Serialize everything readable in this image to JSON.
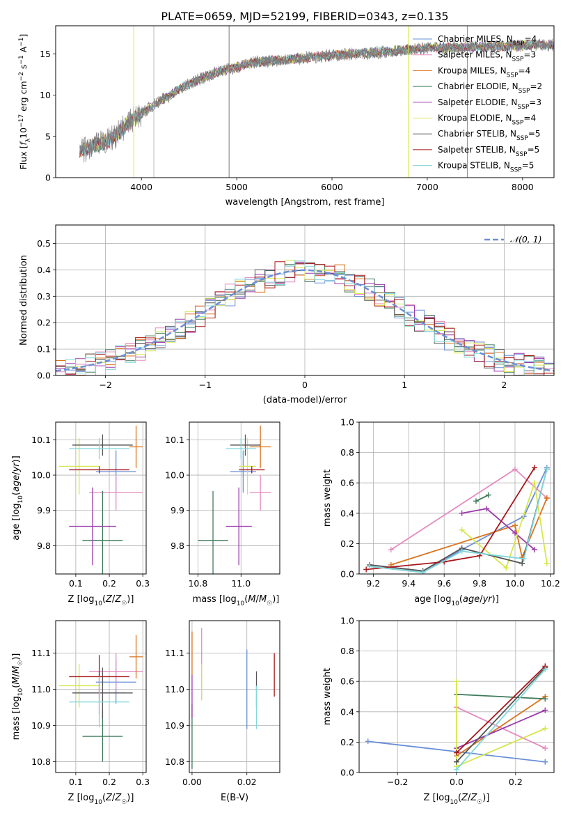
{
  "figure_title": "PLATE=0659, MJD=52199, FIBERID=0343, z=0.135",
  "chart_data": [
    {
      "panel": "spectrum",
      "type": "line",
      "xlabel": "wavelength [Angstrom, rest frame]",
      "ylabel": "Flux [f_λ10^{-17} erg cm^{-2} s^{-1} A^{-1}]",
      "xlim": [
        3100,
        8330
      ],
      "ylim": [
        0,
        18.4
      ],
      "xticks": [
        4000,
        5000,
        6000,
        7000,
        8000
      ],
      "yticks": [
        0,
        5,
        10,
        15
      ],
      "legend_position": "upper-right",
      "grid": false,
      "series": [
        {
          "name": "Chabrier MILES, N_SSP=4",
          "color": "#6a8fd8"
        },
        {
          "name": "Salpeter MILES, N_SSP=3",
          "color": "#e58bbf"
        },
        {
          "name": "Kroupa MILES, N_SSP=4",
          "color": "#d9731e"
        },
        {
          "name": "Chabrier ELODIE, N_SSP=2",
          "color": "#3d7a5a"
        },
        {
          "name": "Salpeter ELODIE, N_SSP=3",
          "color": "#9a3aaa"
        },
        {
          "name": "Kroupa ELODIE, N_SSP=4",
          "color": "#d6e64a"
        },
        {
          "name": "Chabrier STELIB, N_SSP=5",
          "color": "#555555"
        },
        {
          "name": "Salpeter STELIB, N_SSP=5",
          "color": "#a8161a"
        },
        {
          "name": "Kroupa STELIB, N_SSP=5",
          "color": "#80d8dc"
        }
      ],
      "data_color": "#7f7f7f",
      "continuum": {
        "x": [
          3350,
          3550,
          3700,
          3900,
          4050,
          4300,
          4500,
          4800,
          5200,
          5600,
          6000,
          6500,
          7000,
          7400,
          8000,
          8330
        ],
        "y": [
          3.2,
          4.0,
          4.8,
          7.0,
          8.2,
          10.0,
          11.4,
          12.8,
          14.0,
          14.4,
          14.8,
          15.2,
          15.7,
          15.8,
          16.0,
          16.1
        ]
      }
    },
    {
      "panel": "residuals",
      "type": "histogram",
      "xlabel": "(data-model)/error",
      "ylabel": "Normed distribution",
      "xlim": [
        -2.5,
        2.5
      ],
      "ylim": [
        0,
        0.57
      ],
      "xticks": [
        -2,
        -1,
        0,
        1,
        2
      ],
      "yticks": [
        0.0,
        0.1,
        0.2,
        0.3,
        0.4,
        0.5
      ],
      "bin_width": 0.1,
      "grid": true,
      "reference_curve": {
        "name": "𝒩(0, 1)",
        "color": "#6a8fd8"
      },
      "legend_position": "upper-right"
    },
    {
      "panel": "age-vs-Z",
      "type": "scatter",
      "xlabel": "Z [log10(Z/Z☉)]",
      "ylabel": "age  [log10(age/yr)]",
      "xlim": [
        0.04,
        0.31
      ],
      "ylim": [
        9.72,
        10.15
      ],
      "xticks": [
        0.1,
        0.2,
        0.3
      ],
      "yticks": [
        9.8,
        9.9,
        10.0,
        10.1
      ],
      "grid": true,
      "points": [
        {
          "color": "#6a8fd8",
          "x": 0.22,
          "xerr": 0.06,
          "y": 10.01,
          "yerr": 0.06
        },
        {
          "color": "#e58bbf",
          "x": 0.22,
          "xerr": 0.08,
          "y": 9.95,
          "yerr": 0.05
        },
        {
          "color": "#d9731e",
          "x": 0.28,
          "xerr": 0.02,
          "y": 10.08,
          "yerr": 0.06
        },
        {
          "color": "#3d7a5a",
          "x": 0.18,
          "xerr": 0.06,
          "y": 9.815,
          "yerr": 0.14
        },
        {
          "color": "#9a3aaa",
          "x": 0.15,
          "xerr": 0.07,
          "y": 9.855,
          "yerr": 0.11
        },
        {
          "color": "#d6e64a",
          "x": 0.11,
          "xerr": 0.06,
          "y": 10.025,
          "yerr": 0.08
        },
        {
          "color": "#555555",
          "x": 0.18,
          "xerr": 0.09,
          "y": 10.085,
          "yerr": 0.03
        },
        {
          "color": "#a8161a",
          "x": 0.17,
          "xerr": 0.09,
          "y": 10.015,
          "yerr": 0.01
        },
        {
          "color": "#80d8dc",
          "x": 0.17,
          "xerr": 0.09,
          "y": 10.075,
          "yerr": 0.03
        }
      ]
    },
    {
      "panel": "age-vs-mass",
      "type": "scatter",
      "xlabel": "mass [log10(M/M☉)]",
      "ylabel": "",
      "xlim": [
        10.76,
        11.18
      ],
      "ylim": [
        9.72,
        10.15
      ],
      "xticks": [
        10.8,
        11.0
      ],
      "yticks": [
        9.8,
        9.9,
        10.0,
        10.1
      ],
      "grid": true,
      "points": [
        {
          "color": "#6a8fd8",
          "x": 11.01,
          "xerr": 0.06,
          "y": 10.01,
          "yerr": 0.06
        },
        {
          "color": "#e58bbf",
          "x": 11.09,
          "xerr": 0.05,
          "y": 9.95,
          "yerr": 0.05
        },
        {
          "color": "#d9731e",
          "x": 11.09,
          "xerr": 0.05,
          "y": 10.08,
          "yerr": 0.06
        },
        {
          "color": "#3d7a5a",
          "x": 10.87,
          "xerr": 0.07,
          "y": 9.815,
          "yerr": 0.14
        },
        {
          "color": "#9a3aaa",
          "x": 10.99,
          "xerr": 0.06,
          "y": 9.855,
          "yerr": 0.11
        },
        {
          "color": "#d6e64a",
          "x": 11.03,
          "xerr": 0.04,
          "y": 10.025,
          "yerr": 0.08
        },
        {
          "color": "#555555",
          "x": 11.02,
          "xerr": 0.07,
          "y": 10.085,
          "yerr": 0.03
        },
        {
          "color": "#a8161a",
          "x": 11.05,
          "xerr": 0.06,
          "y": 10.015,
          "yerr": 0.01
        },
        {
          "color": "#80d8dc",
          "x": 11.0,
          "xerr": 0.07,
          "y": 10.075,
          "yerr": 0.03
        }
      ]
    },
    {
      "panel": "weight-vs-age",
      "type": "line",
      "xlabel": "age  [log10(age/yr)]",
      "ylabel": "mass weight",
      "xlim": [
        9.12,
        10.22
      ],
      "ylim": [
        0,
        1.0
      ],
      "xticks": [
        9.2,
        9.4,
        9.6,
        9.8,
        10.0,
        10.2
      ],
      "yticks": [
        0.0,
        0.2,
        0.4,
        0.6,
        0.8,
        1.0
      ],
      "grid": true,
      "series": [
        {
          "color": "#6a8fd8",
          "x": [
            9.18,
            9.48,
            9.7,
            10.05,
            10.18
          ],
          "y": [
            0.05,
            0.01,
            0.16,
            0.38,
            0.7
          ]
        },
        {
          "color": "#e58bbf",
          "x": [
            9.3,
            10.0,
            10.18
          ],
          "y": [
            0.16,
            0.69,
            0.5
          ]
        },
        {
          "color": "#d9731e",
          "x": [
            9.3,
            10.0,
            10.04,
            10.18
          ],
          "y": [
            0.06,
            0.32,
            0.11,
            0.5
          ]
        },
        {
          "color": "#3d7a5a",
          "x": [
            9.78,
            9.85
          ],
          "y": [
            0.48,
            0.52
          ]
        },
        {
          "color": "#9a3aaa",
          "x": [
            9.7,
            9.84,
            10.0,
            10.11
          ],
          "y": [
            0.4,
            0.43,
            0.27,
            0.16
          ]
        },
        {
          "color": "#d6e64a",
          "x": [
            9.7,
            9.95,
            10.11,
            10.18
          ],
          "y": [
            0.29,
            0.04,
            0.6,
            0.07
          ]
        },
        {
          "color": "#555555",
          "x": [
            9.18,
            9.48,
            9.7,
            10.04,
            10.18
          ],
          "y": [
            0.06,
            0.02,
            0.17,
            0.07,
            0.69
          ]
        },
        {
          "color": "#a8161a",
          "x": [
            9.16,
            9.6,
            9.8,
            10.11
          ],
          "y": [
            0.03,
            0.08,
            0.12,
            0.7
          ]
        },
        {
          "color": "#80d8dc",
          "x": [
            9.18,
            9.48,
            9.7,
            10.05,
            10.18
          ],
          "y": [
            0.05,
            0.01,
            0.15,
            0.1,
            0.69
          ]
        }
      ]
    },
    {
      "panel": "mass-vs-Z",
      "type": "scatter",
      "xlabel": "Z [log10(Z/Z☉)]",
      "ylabel": "mass [log10(M/M☉)]",
      "xlim": [
        0.04,
        0.31
      ],
      "ylim": [
        10.77,
        11.19
      ],
      "xticks": [
        0.1,
        0.2,
        0.3
      ],
      "yticks": [
        10.8,
        10.9,
        11.0,
        11.1
      ],
      "grid": true,
      "points": [
        {
          "color": "#6a8fd8",
          "x": 0.22,
          "xerr": 0.06,
          "y": 11.02,
          "yerr": 0.06
        },
        {
          "color": "#e58bbf",
          "x": 0.22,
          "xerr": 0.08,
          "y": 11.05,
          "yerr": 0.05
        },
        {
          "color": "#d9731e",
          "x": 0.28,
          "xerr": 0.02,
          "y": 11.09,
          "yerr": 0.06
        },
        {
          "color": "#3d7a5a",
          "x": 0.18,
          "xerr": 0.06,
          "y": 10.87,
          "yerr": 0.07
        },
        {
          "color": "#9a3aaa",
          "x": 0.17,
          "xerr": 0.08,
          "y": 10.99,
          "yerr": 0.06
        },
        {
          "color": "#d6e64a",
          "x": 0.11,
          "xerr": 0.06,
          "y": 11.01,
          "yerr": 0.06
        },
        {
          "color": "#555555",
          "x": 0.18,
          "xerr": 0.09,
          "y": 10.99,
          "yerr": 0.07
        },
        {
          "color": "#a8161a",
          "x": 0.17,
          "xerr": 0.09,
          "y": 11.035,
          "yerr": 0.06
        },
        {
          "color": "#80d8dc",
          "x": 0.17,
          "xerr": 0.09,
          "y": 10.965,
          "yerr": 0.07
        }
      ]
    },
    {
      "panel": "mass-vs-EBV",
      "type": "scatter",
      "xlabel": "E(B-V)",
      "ylabel": "",
      "xlim": [
        -0.001,
        0.032
      ],
      "ylim": [
        10.77,
        11.19
      ],
      "xticks": [
        0.0,
        0.02
      ],
      "yticks": [
        10.8,
        10.9,
        11.0,
        11.1
      ],
      "grid": true,
      "points": [
        {
          "color": "#6a8fd8",
          "x": 0.02,
          "xerr": 0,
          "y": 11.0,
          "yerr": 0.11
        },
        {
          "color": "#e58bbf",
          "x": 0.0035,
          "xerr": 0,
          "y": 11.07,
          "yerr": 0.1
        },
        {
          "color": "#d9731e",
          "x": 0.0,
          "xerr": 0,
          "y": 11.1,
          "yerr": 0.06
        },
        {
          "color": "#3d7a5a",
          "x": 0.0,
          "xerr": 0,
          "y": 10.87,
          "yerr": 0.09
        },
        {
          "color": "#9a3aaa",
          "x": 0.0,
          "xerr": 0,
          "y": 10.98,
          "yerr": 0.06
        },
        {
          "color": "#d6e64a",
          "x": 0.0035,
          "xerr": 0,
          "y": 11.02,
          "yerr": 0.05
        },
        {
          "color": "#555555",
          "x": 0.0235,
          "xerr": 0,
          "y": 11.0,
          "yerr": 0.05
        },
        {
          "color": "#a8161a",
          "x": 0.03,
          "xerr": 0,
          "y": 11.04,
          "yerr": 0.06
        },
        {
          "color": "#80d8dc",
          "x": 0.0235,
          "xerr": 0,
          "y": 10.95,
          "yerr": 0.06
        }
      ]
    },
    {
      "panel": "weight-vs-Z",
      "type": "line",
      "xlabel": "Z [log10(Z/Z☉)]",
      "ylabel": "mass weight",
      "xlim": [
        -0.33,
        0.33
      ],
      "ylim": [
        0,
        1.0
      ],
      "xticks": [
        -0.2,
        0.0,
        0.2
      ],
      "yticks": [
        0.0,
        0.2,
        0.4,
        0.6,
        0.8,
        1.0
      ],
      "grid": true,
      "series": [
        {
          "color": "#6a8fd8",
          "x": [
            -0.3,
            0.3
          ],
          "y": [
            0.205,
            0.07
          ]
        },
        {
          "color": "#e58bbf",
          "x": [
            0.0,
            0.3
          ],
          "y": [
            0.43,
            0.16
          ]
        },
        {
          "color": "#d9731e",
          "x": [
            0.0,
            0.3
          ],
          "y": [
            0.11,
            0.5
          ]
        },
        {
          "color": "#3d7a5a",
          "x": [
            0.0,
            0.3
          ],
          "y": [
            0.515,
            0.485
          ]
        },
        {
          "color": "#9a3aaa",
          "x": [
            0.0,
            0.3
          ],
          "y": [
            0.16,
            0.41
          ]
        },
        {
          "color": "#d6e64a",
          "x": [
            0.0,
            0.0,
            0.3
          ],
          "y": [
            0.6,
            0.04,
            0.29
          ]
        },
        {
          "color": "#555555",
          "x": [
            0.0,
            0.3
          ],
          "y": [
            0.07,
            0.69
          ]
        },
        {
          "color": "#a8161a",
          "x": [
            0.0,
            0.3
          ],
          "y": [
            0.13,
            0.7
          ]
        },
        {
          "color": "#80d8dc",
          "x": [
            0.0,
            0.3
          ],
          "y": [
            0.02,
            0.68
          ]
        }
      ]
    }
  ]
}
